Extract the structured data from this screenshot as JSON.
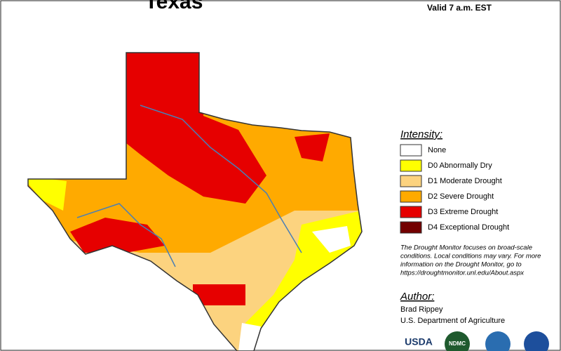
{
  "header": {
    "title": "Texas",
    "valid": "Valid 7 a.m. EST"
  },
  "legend": {
    "title": "Intensity:",
    "items": [
      {
        "label": "None",
        "color": "#ffffff"
      },
      {
        "label": "D0 Abnormally Dry",
        "color": "#ffff00"
      },
      {
        "label": "D1 Moderate Drought",
        "color": "#fcd37f"
      },
      {
        "label": "D2 Severe Drought",
        "color": "#ffaa00"
      },
      {
        "label": "D3 Extreme Drought",
        "color": "#e60000"
      },
      {
        "label": "D4 Exceptional Drought",
        "color": "#730000"
      }
    ]
  },
  "note": [
    "The Drought Monitor focuses on broad-scale",
    "conditions. Local conditions may vary. For more",
    "information on the Drought Monitor, go to",
    "https://droughtmonitor.unl.edu/About.aspx"
  ],
  "author": {
    "title": "Author:",
    "name": "Brad Rippey",
    "org": "U.S. Department of Agriculture"
  },
  "logos": [
    "USDA",
    "NDMC"
  ]
}
